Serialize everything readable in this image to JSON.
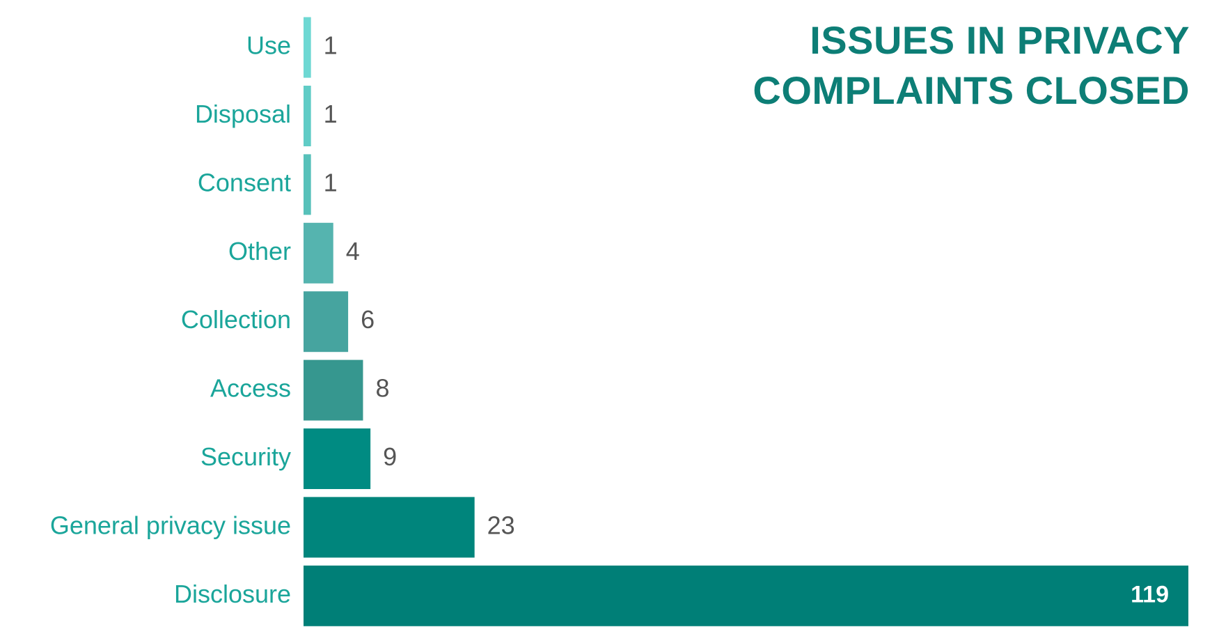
{
  "chart_data": {
    "type": "bar",
    "orientation": "horizontal",
    "title": "ISSUES IN PRIVACY COMPLAINTS CLOSED",
    "categories": [
      "Use",
      "Disposal",
      "Consent",
      "Other",
      "Collection",
      "Access",
      "Security",
      "General privacy issue",
      "Disclosure"
    ],
    "values": [
      1,
      1,
      1,
      4,
      6,
      8,
      9,
      23,
      119
    ],
    "colors": [
      "#6ed8d3",
      "#60ccc6",
      "#57c1ba",
      "#55b4af",
      "#46a49f",
      "#36978f",
      "#008b82",
      "#00857c",
      "#007f77"
    ],
    "xlim": [
      0,
      119
    ]
  }
}
